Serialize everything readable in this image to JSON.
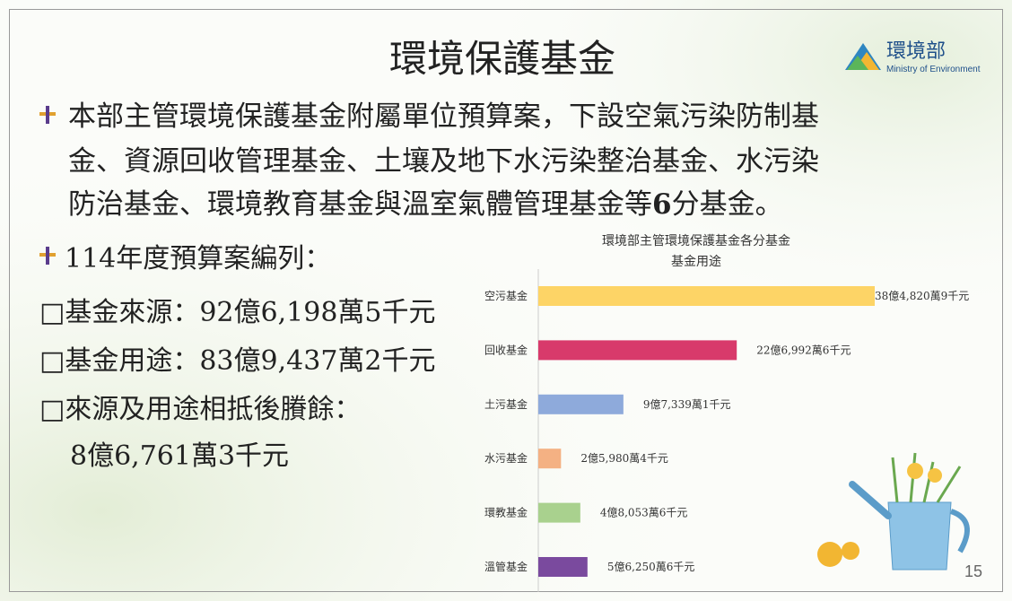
{
  "slide": {
    "title": "環境保護基金",
    "logo": {
      "name": "環境部",
      "subtitle": "Ministry of Environment"
    },
    "paragraph": {
      "line1": "本部主管環境保護基金附屬單位預算案，下設空氣污染防制基",
      "line2": "金、資源回收管理基金、土壤及地下水污染整治基金、水污染",
      "line3a": "防治基金、環境教育基金與溫室氣體管理基金等",
      "line3b": "6",
      "line3c": "分基金。"
    },
    "budget_heading": "114年度預算案編列：",
    "items": [
      "□基金來源：92億6,198萬5千元",
      "□基金用途：83億9,437萬2千元",
      "□來源及用途相抵後賸餘："
    ],
    "surplus": "8億6,761萬3千元",
    "page_number": "15"
  },
  "chart_data": {
    "type": "bar",
    "orientation": "horizontal",
    "title": [
      "環境部主管環境保護基金各分基金",
      "基金用途"
    ],
    "categories": [
      "空污基金",
      "回收基金",
      "土污基金",
      "水污基金",
      "環教基金",
      "溫管基金"
    ],
    "values": [
      3848209,
      2269926,
      973391,
      259804,
      480536,
      562506
    ],
    "value_labels": [
      "38億4,820萬9千元",
      "22億6,992萬6千元",
      "9億7,339萬1千元",
      "2億5,980萬4千元",
      "4億8,053萬6千元",
      "5億6,250萬6千元"
    ],
    "colors": [
      "#fdd466",
      "#d83a6b",
      "#8eaadb",
      "#f4b183",
      "#a9d18e",
      "#7a4a9e"
    ]
  }
}
